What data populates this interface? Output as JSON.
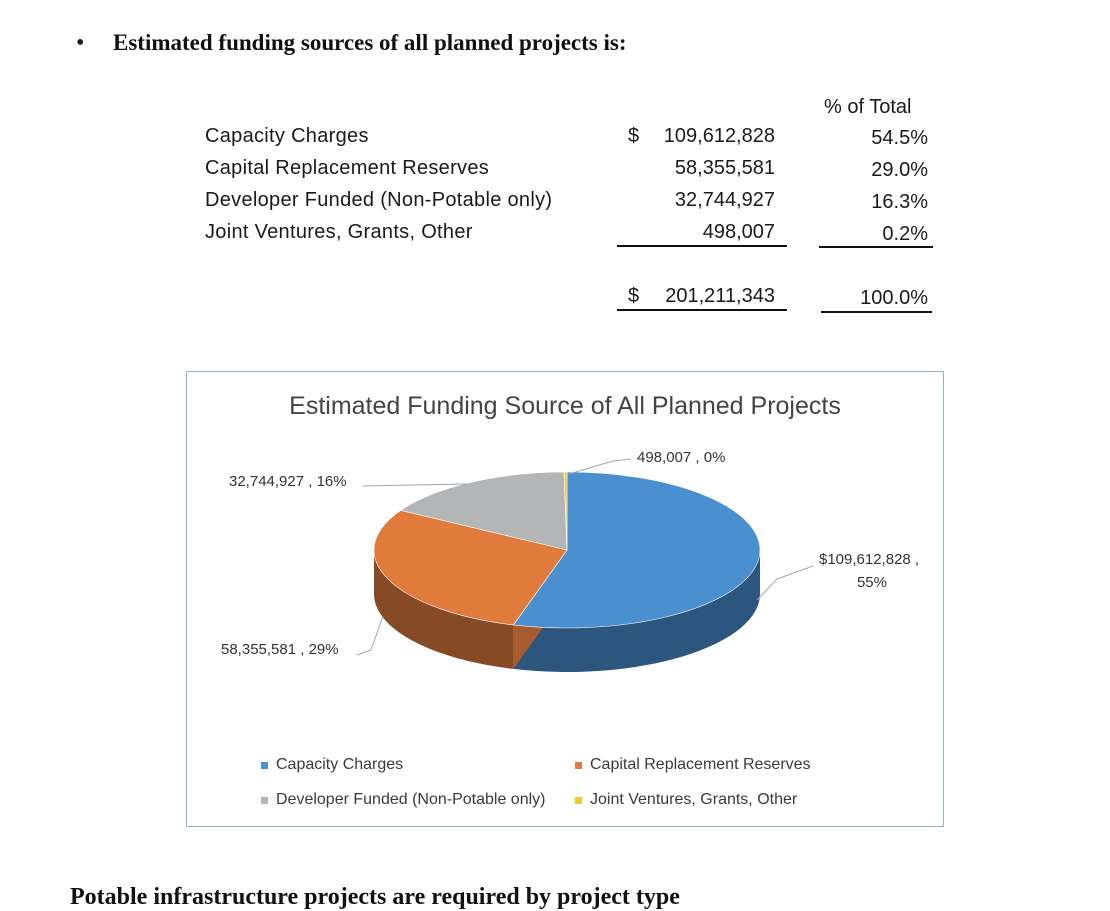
{
  "heading": {
    "bullet": "•",
    "text": "Estimated funding sources of all planned projects is:"
  },
  "table": {
    "pct_header": "% of Total",
    "rows": [
      {
        "label": "Capacity Charges",
        "dollar": "$",
        "amount": "109,612,828",
        "pct": "54.5%"
      },
      {
        "label": "Capital Replacement Reserves",
        "dollar": "",
        "amount": "58,355,581",
        "pct": "29.0%"
      },
      {
        "label": "Developer Funded (Non-Potable only)",
        "dollar": "",
        "amount": "32,744,927",
        "pct": "16.3%"
      },
      {
        "label": "Joint Ventures, Grants, Other",
        "dollar": "",
        "amount": "498,007",
        "pct": "0.2%"
      }
    ],
    "total": {
      "dollar": "$",
      "amount": "201,211,343",
      "pct": "100.0%"
    }
  },
  "chart_data": {
    "type": "pie",
    "title": "Estimated  Funding Source of All Planned Projects",
    "categories": [
      "Capacity Charges",
      "Capital Replacement Reserves",
      "Developer Funded (Non-Potable only)",
      "Joint Ventures, Grants, Other"
    ],
    "values": [
      109612828,
      58355581,
      32744927,
      498007
    ],
    "percent_labels": [
      "55%",
      "29%",
      "16%",
      "0%"
    ],
    "data_labels": [
      "$109,612,828 ,",
      "58,355,581 , 29%",
      "32,744,927 , 16%",
      "498,007 , 0%"
    ],
    "colors": [
      "#4a8fd0",
      "#e07b3c",
      "#b3b5b6",
      "#f2c92e"
    ],
    "legend_placement": "bottom"
  },
  "footer": {
    "cut_text": "Potable infrastructure projects are required by project type"
  }
}
